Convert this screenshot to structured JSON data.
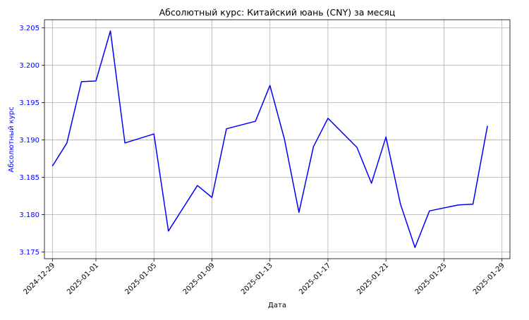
{
  "chart_data": {
    "type": "line",
    "title": "Абсолютный курс: Китайский юань (CNY) за месяц",
    "xlabel": "Дата",
    "ylabel": "Абсолютный курс",
    "x_ticks": [
      "2024-12-29",
      "2025-01-01",
      "2025-01-05",
      "2025-01-09",
      "2025-01-13",
      "2025-01-17",
      "2025-01-21",
      "2025-01-25",
      "2025-01-29"
    ],
    "y_ticks": [
      "3.175",
      "3.180",
      "3.185",
      "3.190",
      "3.195",
      "3.200",
      "3.205"
    ],
    "ylim": [
      3.1741,
      3.2061
    ],
    "xlim": [
      "2024-12-28T10:48",
      "2025-01-29T13:12"
    ],
    "grid": true,
    "colors": {
      "line": "#0000ff",
      "ylabel": "#0000ff",
      "ytick": "#0000ff",
      "grid": "#b0b0b0",
      "axes": "#000000"
    },
    "series": [
      {
        "x": [
          "2024-12-29",
          "2024-12-30",
          "2024-12-31",
          "2025-01-01",
          "2025-01-02",
          "2025-01-03",
          "2025-01-05",
          "2025-01-06",
          "2025-01-08",
          "2025-01-09",
          "2025-01-10",
          "2025-01-12",
          "2025-01-13",
          "2025-01-14",
          "2025-01-15",
          "2025-01-16",
          "2025-01-17",
          "2025-01-19",
          "2025-01-20",
          "2025-01-21",
          "2025-01-22",
          "2025-01-23",
          "2025-01-24",
          "2025-01-26",
          "2025-01-27",
          "2025-01-28"
        ],
        "values": [
          3.1865,
          3.1896,
          3.1978,
          3.1979,
          3.2046,
          3.1896,
          3.1908,
          3.1778,
          3.1839,
          3.1823,
          3.1915,
          3.1925,
          3.1973,
          3.1901,
          3.1803,
          3.1891,
          3.1929,
          3.189,
          3.1842,
          3.1904,
          3.1814,
          3.1756,
          3.1805,
          3.1813,
          3.1814,
          3.1919
        ]
      }
    ]
  }
}
